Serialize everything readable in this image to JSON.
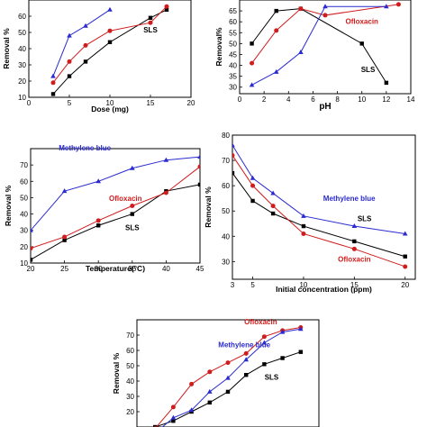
{
  "colors": {
    "SLS": "#000000",
    "Ofloxacin": "#d01c1c",
    "Methylene blue": "#2a2ad0"
  },
  "chart_data": [
    {
      "type": "line",
      "xlabel": "Dose (mg)",
      "ylabel": "Removal %",
      "xlim": [
        0,
        20
      ],
      "ylim": [
        10,
        70
      ],
      "xticks": [
        0,
        5,
        10,
        15,
        20
      ],
      "yticks": [
        10,
        20,
        30,
        40,
        50,
        60
      ],
      "series": [
        {
          "name": "SLS",
          "x": [
            3,
            5,
            7,
            10,
            15,
            17
          ],
          "y": [
            12,
            23,
            32,
            44,
            59,
            64
          ]
        },
        {
          "name": "",
          "x": [
            3,
            5,
            7,
            10,
            15,
            17
          ],
          "y": [
            19,
            32,
            42,
            51,
            56,
            66
          ]
        },
        {
          "name": "",
          "x": [
            3,
            5,
            7,
            10
          ],
          "y": [
            23,
            48,
            54,
            64
          ]
        }
      ]
    },
    {
      "type": "line",
      "xlabel": "pH",
      "ylabel": "Removal%",
      "xlim": [
        0,
        14
      ],
      "ylim": [
        27,
        70
      ],
      "xticks": [
        0,
        2,
        4,
        6,
        8,
        10,
        12,
        14
      ],
      "yticks": [
        30,
        35,
        40,
        45,
        50,
        55,
        60,
        65
      ],
      "series": [
        {
          "name": "SLS",
          "x": [
            1,
            3,
            5,
            10,
            12
          ],
          "y": [
            50,
            65,
            66,
            50,
            32
          ]
        },
        {
          "name": "Ofloxacin",
          "x": [
            1,
            3,
            5,
            7,
            13
          ],
          "y": [
            41,
            56,
            66,
            63,
            68
          ]
        },
        {
          "name": "",
          "x": [
            1,
            3,
            5,
            7,
            12
          ],
          "y": [
            31,
            37,
            46,
            67,
            67
          ]
        }
      ]
    },
    {
      "type": "line",
      "xlabel": "Temperature(°C)",
      "ylabel": "Removal %",
      "xlim": [
        20,
        45
      ],
      "ylim": [
        10,
        80
      ],
      "xticks": [
        20,
        25,
        30,
        35,
        40,
        45
      ],
      "yticks": [
        10,
        20,
        30,
        40,
        50,
        60,
        70
      ],
      "series": [
        {
          "name": "SLS",
          "x": [
            20,
            25,
            30,
            35,
            40,
            45
          ],
          "y": [
            12,
            24,
            33,
            40,
            54,
            58
          ]
        },
        {
          "name": "Ofloxacin",
          "x": [
            20,
            25,
            30,
            35,
            40,
            45
          ],
          "y": [
            19,
            26,
            36,
            45,
            53,
            69
          ]
        },
        {
          "name": "Methylene blue",
          "x": [
            20,
            25,
            30,
            35,
            40,
            45
          ],
          "y": [
            30,
            54,
            60,
            68,
            73,
            75
          ]
        }
      ]
    },
    {
      "type": "line",
      "xlabel": "Initial concentration (ppm)",
      "ylabel": "Removal %",
      "xlim": [
        3,
        21
      ],
      "ylim": [
        23,
        80
      ],
      "xticks": [
        3,
        5,
        10,
        15,
        20
      ],
      "yticks": [
        30,
        40,
        50,
        60,
        70,
        80
      ],
      "series": [
        {
          "name": "SLS",
          "x": [
            3,
            5,
            7,
            10,
            15,
            20
          ],
          "y": [
            65,
            54,
            49,
            44,
            38,
            32
          ]
        },
        {
          "name": "Ofloxacin",
          "x": [
            3,
            5,
            7,
            10,
            15,
            20
          ],
          "y": [
            72,
            60,
            52,
            41,
            35,
            28
          ]
        },
        {
          "name": "Methylene blue",
          "x": [
            3,
            5,
            7,
            10,
            15,
            20
          ],
          "y": [
            76,
            63,
            57,
            48,
            44,
            41
          ]
        }
      ]
    },
    {
      "type": "line",
      "xlabel": "",
      "ylabel": "Removal %",
      "xlim": [
        0,
        10
      ],
      "ylim": [
        10,
        80
      ],
      "xticks": [],
      "yticks": [
        20,
        30,
        40,
        50,
        60,
        70
      ],
      "series": [
        {
          "name": "SLS",
          "x": [
            1,
            2,
            3,
            4,
            5,
            6,
            7,
            8,
            9
          ],
          "y": [
            10,
            14,
            20,
            26,
            33,
            44,
            51,
            55,
            59
          ]
        },
        {
          "name": "Ofloxacin",
          "x": [
            1,
            2,
            3,
            4,
            5,
            6,
            7,
            8,
            9
          ],
          "y": [
            9,
            23,
            38,
            46,
            52,
            58,
            69,
            73,
            75
          ]
        },
        {
          "name": "Methylene blue",
          "x": [
            1,
            2,
            3,
            4,
            5,
            6,
            7,
            8,
            9
          ],
          "y": [
            6,
            16,
            21,
            33,
            42,
            54,
            65,
            72,
            74
          ]
        }
      ]
    }
  ]
}
